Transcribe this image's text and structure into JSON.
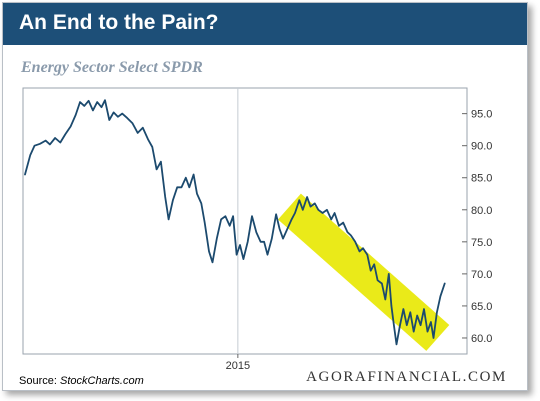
{
  "header": {
    "title": "An End to the Pain?"
  },
  "colors": {
    "header_bg": "#1d4f78",
    "line": "#1c4a6e",
    "highlight": "#e8e800",
    "subtitle": "#8a9aab"
  },
  "footer": {
    "source_label": "Source:",
    "source_name": "StockCharts.com",
    "brand": "AGORAFINANCIAL.COM"
  },
  "chart_data": {
    "type": "line",
    "title": "Energy Sector Select SPDR",
    "xlabel": "",
    "ylabel": "",
    "x_tick_labels": [
      "2015"
    ],
    "x_tick_position": 0.495,
    "yticks": [
      60.0,
      65.0,
      70.0,
      75.0,
      80.0,
      85.0,
      90.0,
      95.0
    ],
    "ylim": [
      57.5,
      99.0
    ],
    "grid": false,
    "highlight": {
      "shape": "yellow channel band",
      "start": {
        "t": 0.615,
        "y": 80.5
      },
      "end": {
        "t": 0.96,
        "y": 60.0
      },
      "half_width": 2.7
    },
    "series": [
      {
        "values": [
          [
            0.0,
            85.5
          ],
          [
            0.012,
            88.5
          ],
          [
            0.022,
            90.0
          ],
          [
            0.035,
            90.3
          ],
          [
            0.048,
            90.8
          ],
          [
            0.058,
            90.2
          ],
          [
            0.07,
            91.2
          ],
          [
            0.082,
            90.5
          ],
          [
            0.094,
            91.8
          ],
          [
            0.106,
            93.0
          ],
          [
            0.118,
            94.8
          ],
          [
            0.128,
            96.8
          ],
          [
            0.138,
            96.2
          ],
          [
            0.148,
            97.0
          ],
          [
            0.158,
            95.5
          ],
          [
            0.168,
            96.8
          ],
          [
            0.178,
            96.0
          ],
          [
            0.186,
            97.1
          ],
          [
            0.196,
            94.0
          ],
          [
            0.206,
            95.2
          ],
          [
            0.216,
            94.5
          ],
          [
            0.226,
            95.0
          ],
          [
            0.238,
            94.3
          ],
          [
            0.25,
            93.5
          ],
          [
            0.262,
            92.0
          ],
          [
            0.274,
            92.8
          ],
          [
            0.286,
            91.0
          ],
          [
            0.296,
            89.8
          ],
          [
            0.306,
            86.3
          ],
          [
            0.316,
            87.5
          ],
          [
            0.326,
            82.0
          ],
          [
            0.334,
            78.5
          ],
          [
            0.344,
            81.5
          ],
          [
            0.354,
            83.5
          ],
          [
            0.364,
            83.5
          ],
          [
            0.374,
            85.0
          ],
          [
            0.382,
            83.5
          ],
          [
            0.392,
            85.5
          ],
          [
            0.4,
            82.5
          ],
          [
            0.41,
            81.0
          ],
          [
            0.418,
            78.0
          ],
          [
            0.428,
            73.5
          ],
          [
            0.436,
            71.8
          ],
          [
            0.446,
            75.5
          ],
          [
            0.456,
            78.5
          ],
          [
            0.466,
            79.0
          ],
          [
            0.476,
            77.5
          ],
          [
            0.484,
            79.0
          ],
          [
            0.492,
            73.0
          ],
          [
            0.5,
            74.5
          ],
          [
            0.508,
            72.3
          ],
          [
            0.518,
            75.0
          ],
          [
            0.528,
            79.0
          ],
          [
            0.538,
            76.5
          ],
          [
            0.548,
            75.0
          ],
          [
            0.556,
            75.0
          ],
          [
            0.564,
            73.0
          ],
          [
            0.574,
            75.5
          ],
          [
            0.584,
            79.3
          ],
          [
            0.592,
            77.0
          ],
          [
            0.6,
            75.5
          ],
          [
            0.61,
            77.0
          ],
          [
            0.62,
            78.5
          ],
          [
            0.628,
            79.5
          ],
          [
            0.638,
            81.5
          ],
          [
            0.646,
            80.0
          ],
          [
            0.656,
            82.0
          ],
          [
            0.664,
            80.5
          ],
          [
            0.674,
            81.0
          ],
          [
            0.682,
            80.0
          ],
          [
            0.692,
            79.5
          ],
          [
            0.702,
            80.0
          ],
          [
            0.712,
            78.5
          ],
          [
            0.72,
            79.5
          ],
          [
            0.73,
            77.5
          ],
          [
            0.74,
            78.0
          ],
          [
            0.75,
            76.5
          ],
          [
            0.758,
            76.0
          ],
          [
            0.768,
            75.0
          ],
          [
            0.778,
            73.5
          ],
          [
            0.786,
            74.0
          ],
          [
            0.796,
            73.0
          ],
          [
            0.804,
            70.5
          ],
          [
            0.812,
            71.5
          ],
          [
            0.82,
            69.0
          ],
          [
            0.83,
            68.5
          ],
          [
            0.838,
            66.0
          ],
          [
            0.846,
            70.0
          ],
          [
            0.852,
            65.0
          ],
          [
            0.858,
            62.0
          ],
          [
            0.864,
            59.0
          ],
          [
            0.872,
            62.0
          ],
          [
            0.88,
            64.5
          ],
          [
            0.888,
            62.0
          ],
          [
            0.896,
            64.0
          ],
          [
            0.904,
            61.0
          ],
          [
            0.912,
            63.5
          ],
          [
            0.92,
            62.0
          ],
          [
            0.928,
            64.5
          ],
          [
            0.936,
            61.0
          ],
          [
            0.944,
            62.5
          ],
          [
            0.95,
            60.0
          ],
          [
            0.958,
            64.0
          ],
          [
            0.966,
            66.5
          ],
          [
            0.976,
            68.5
          ]
        ]
      }
    ]
  }
}
